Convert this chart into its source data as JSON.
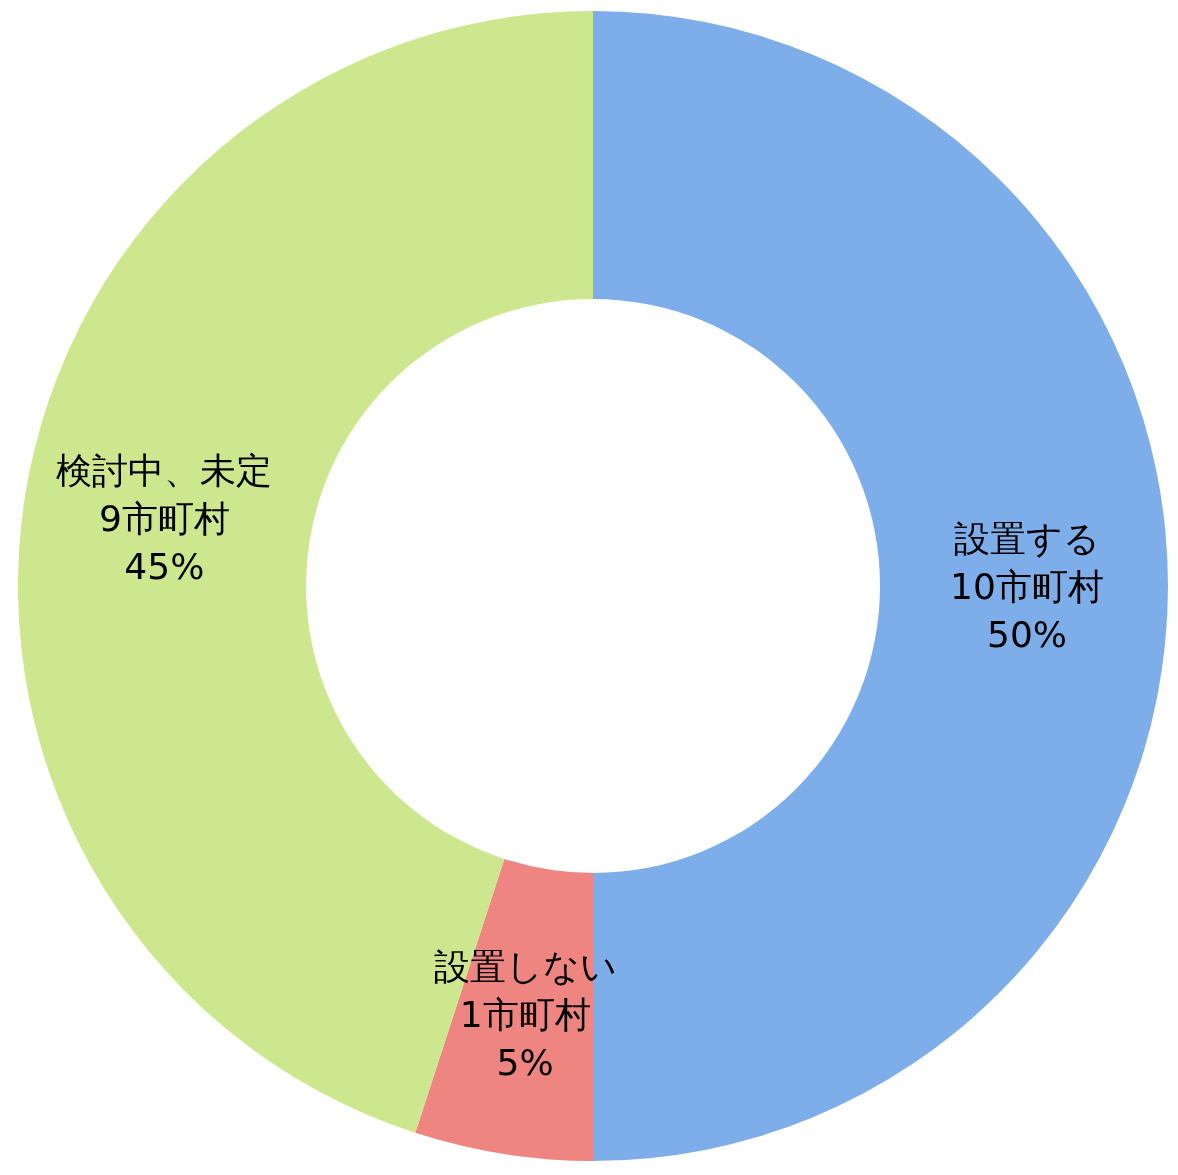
{
  "chart_data": {
    "type": "donut",
    "categories": [
      "設置する",
      "設置しない",
      "検討中、未定"
    ],
    "values": [
      10,
      1,
      9
    ],
    "colors": [
      "#7eaeea",
      "#ee8580",
      "#cde78e"
    ],
    "value_labels": [
      "10市町村\n50%",
      "1市町村\n5%",
      "9市町村\n45%"
    ]
  }
}
